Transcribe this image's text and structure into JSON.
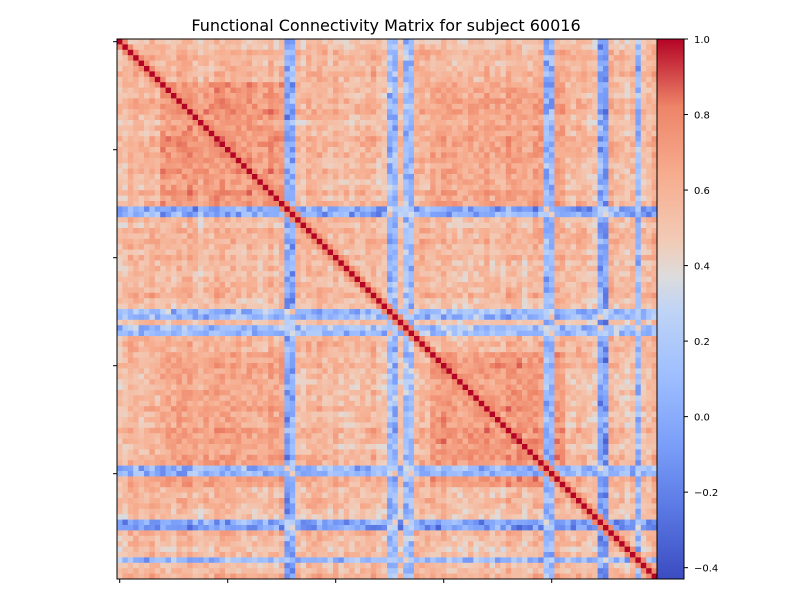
{
  "chart_data": {
    "type": "heatmap",
    "title": "Functional Connectivity Matrix for subject 60016",
    "xlabel": "",
    "ylabel": "",
    "matrix_size": 100,
    "colormap": "coolwarm",
    "vmin": -0.43,
    "vmax": 1.0,
    "diagonal_value": 1.0,
    "colorbar_ticks": [
      1.0,
      0.8,
      0.6,
      0.4,
      0.2,
      0.0,
      -0.2,
      -0.4
    ],
    "colorbar_tick_labels": [
      "1.0",
      "0.8",
      "0.6",
      "0.4",
      "0.2",
      "0.0",
      "−0.2",
      "−0.4"
    ],
    "axis_tick_count": 5,
    "tick_labels_visible": false,
    "blocks": [
      {
        "rows": [
          8,
          32
        ],
        "cols": [
          8,
          32
        ],
        "value": 0.72
      },
      {
        "rows": [
          58,
          82
        ],
        "cols": [
          58,
          82
        ],
        "value": 0.72
      },
      {
        "rows": [
          8,
          32
        ],
        "cols": [
          58,
          82
        ],
        "value": 0.66
      },
      {
        "rows": [
          58,
          82
        ],
        "cols": [
          8,
          32
        ],
        "value": 0.66
      }
    ],
    "low_connectivity_nodes": [
      {
        "index": 31,
        "value": 0.15
      },
      {
        "index": 32,
        "value": 0.18
      },
      {
        "index": 50,
        "value": 0.28
      },
      {
        "index": 51,
        "value": 0.25
      },
      {
        "index": 53,
        "value": 0.3
      },
      {
        "index": 54,
        "value": 0.28
      },
      {
        "index": 79,
        "value": 0.22
      },
      {
        "index": 80,
        "value": 0.2
      },
      {
        "index": 89,
        "value": 0.15
      },
      {
        "index": 90,
        "value": 0.1
      },
      {
        "index": 96,
        "value": 0.25
      }
    ],
    "background_mean": 0.55
  }
}
